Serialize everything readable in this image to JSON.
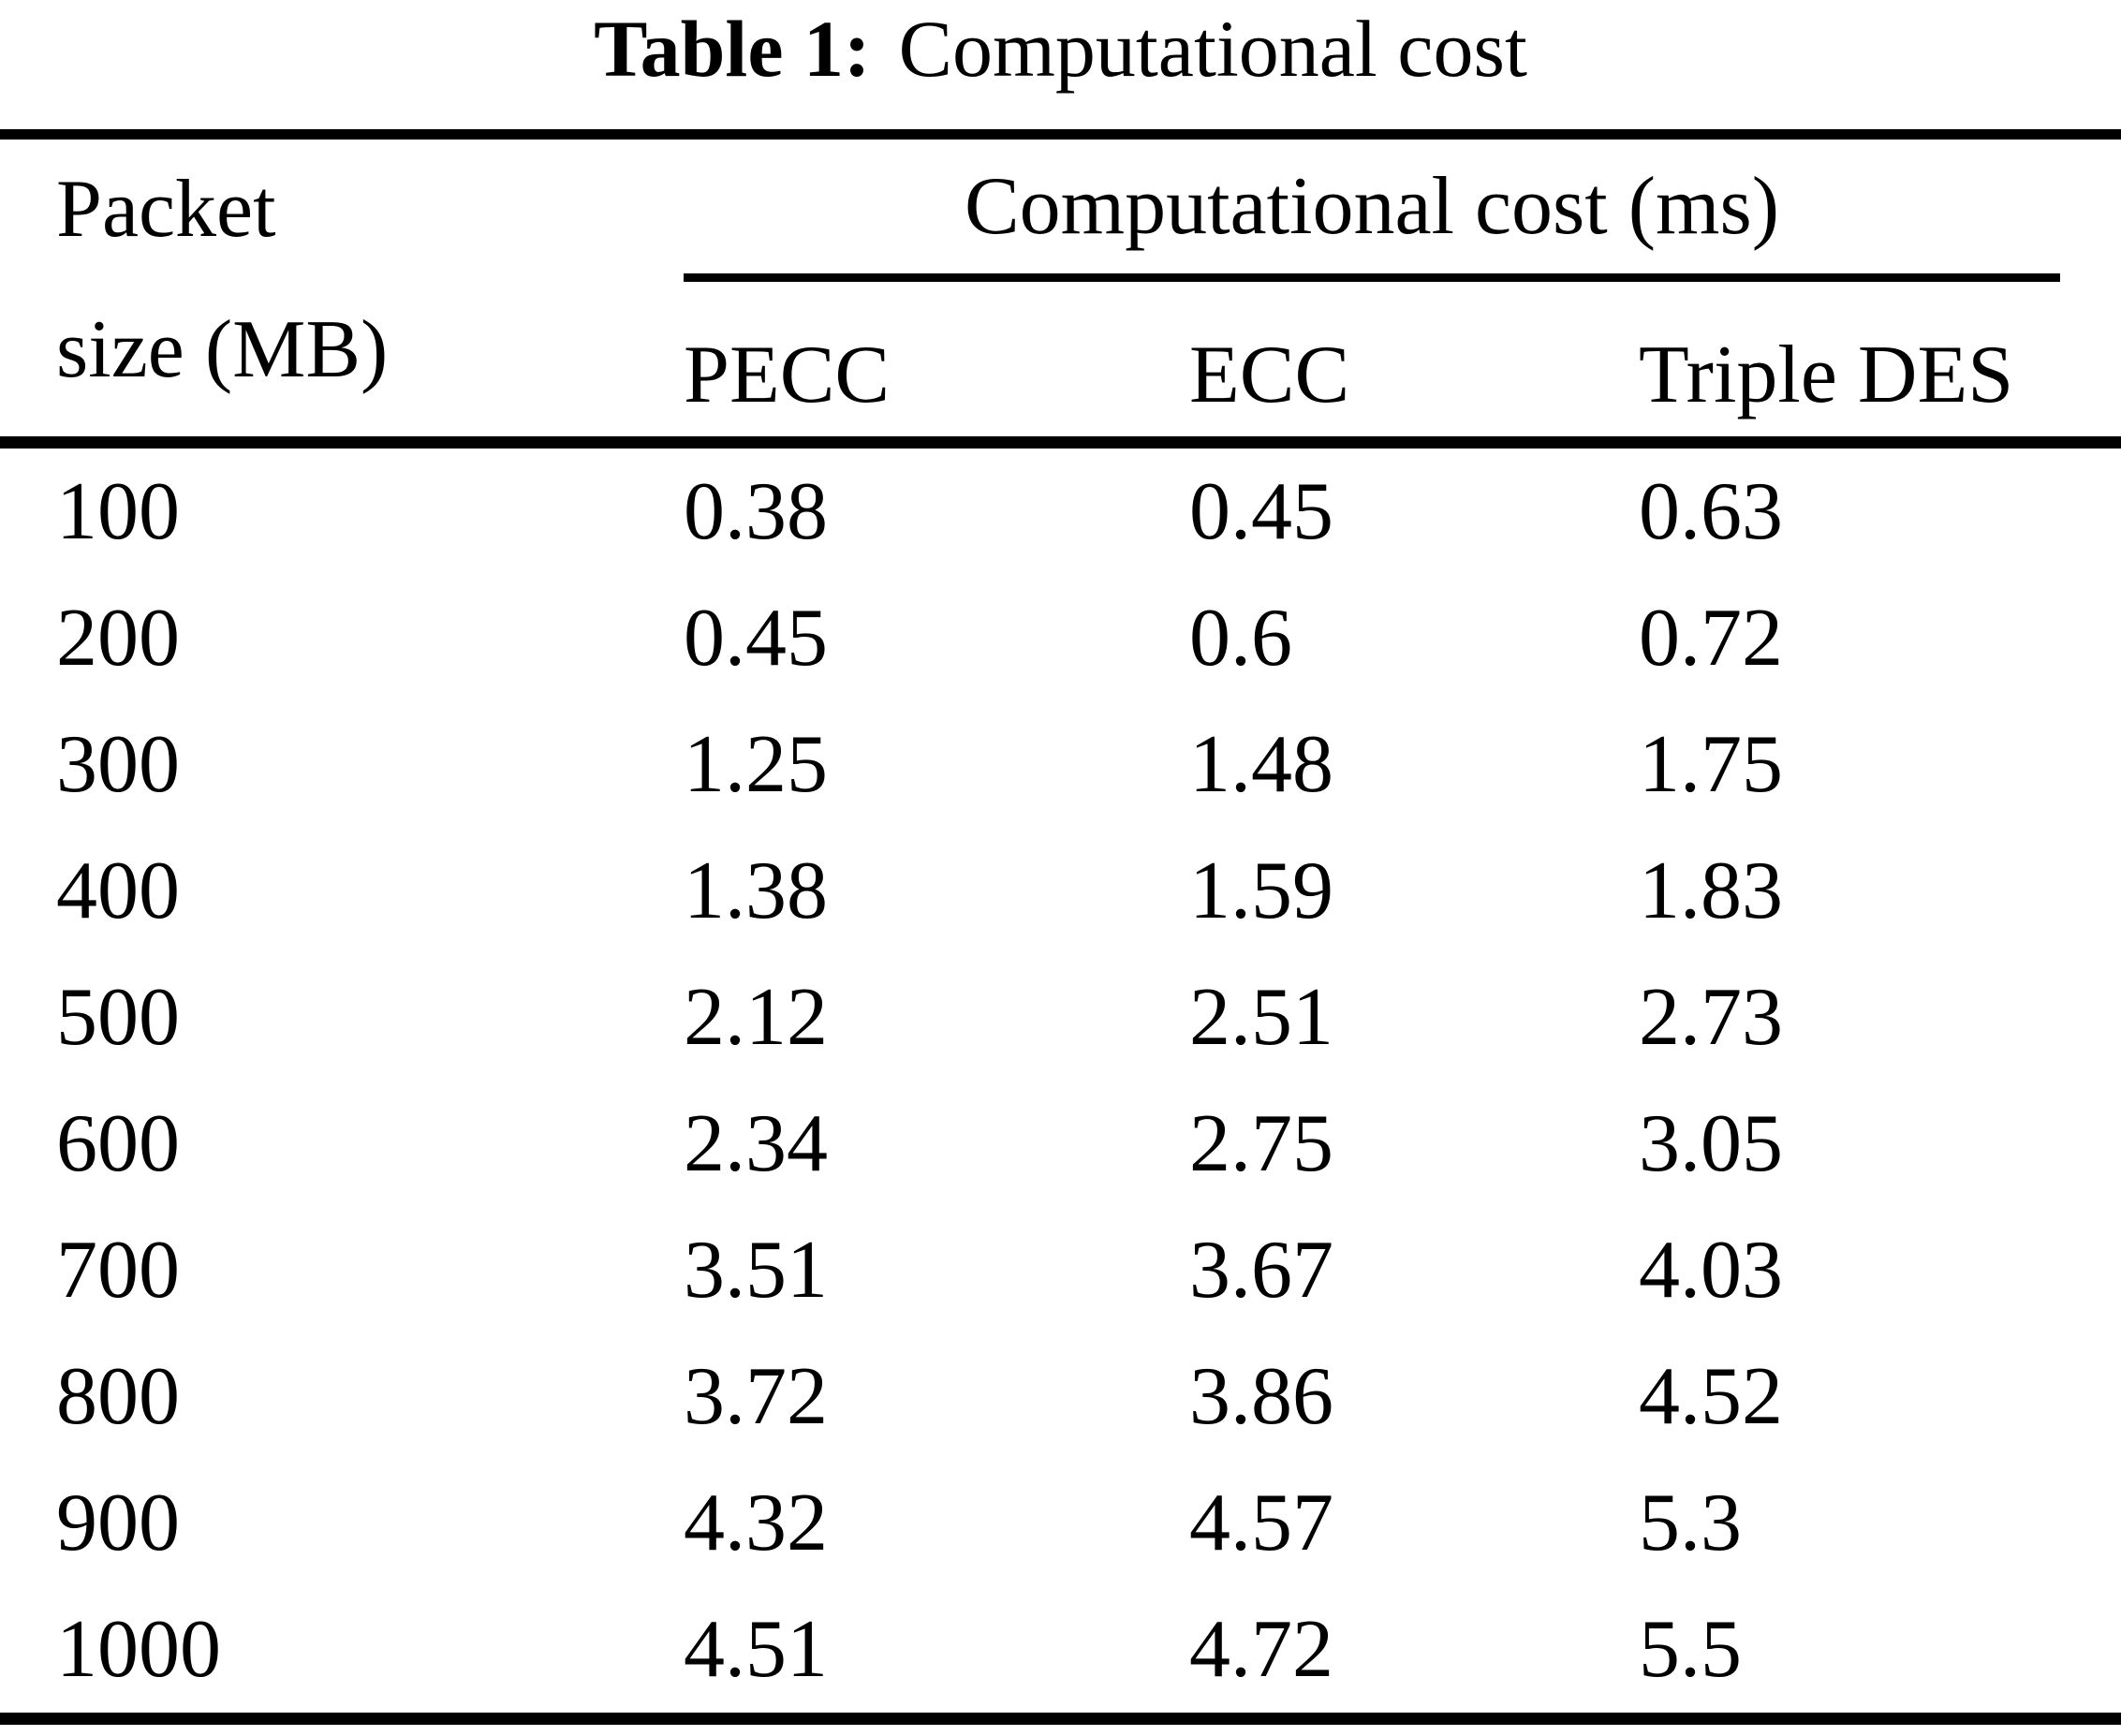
{
  "caption": {
    "label": "Table 1:",
    "text": "Computational cost"
  },
  "table": {
    "col1_header_line1": "Packet",
    "col1_header_line2": "size (MB)",
    "group_header": "Computational cost (ms)",
    "sub_headers": [
      "PECC",
      "ECC",
      "Triple DES"
    ]
  },
  "chart_data": {
    "type": "table",
    "title": "Table 1: Computational cost",
    "columns": [
      "Packet size (MB)",
      "PECC",
      "ECC",
      "Triple DES"
    ],
    "column_group": {
      "label": "Computational cost (ms)",
      "spans": [
        "PECC",
        "ECC",
        "Triple DES"
      ]
    },
    "rows": [
      [
        "100",
        "0.38",
        "0.45",
        "0.63"
      ],
      [
        "200",
        "0.45",
        "0.6",
        "0.72"
      ],
      [
        "300",
        "1.25",
        "1.48",
        "1.75"
      ],
      [
        "400",
        "1.38",
        "1.59",
        "1.83"
      ],
      [
        "500",
        "2.12",
        "2.51",
        "2.73"
      ],
      [
        "600",
        "2.34",
        "2.75",
        "3.05"
      ],
      [
        "700",
        "3.51",
        "3.67",
        "4.03"
      ],
      [
        "800",
        "3.72",
        "3.86",
        "4.52"
      ],
      [
        "900",
        "4.32",
        "4.57",
        "5.3"
      ],
      [
        "1000",
        "4.51",
        "4.72",
        "5.5"
      ]
    ]
  }
}
